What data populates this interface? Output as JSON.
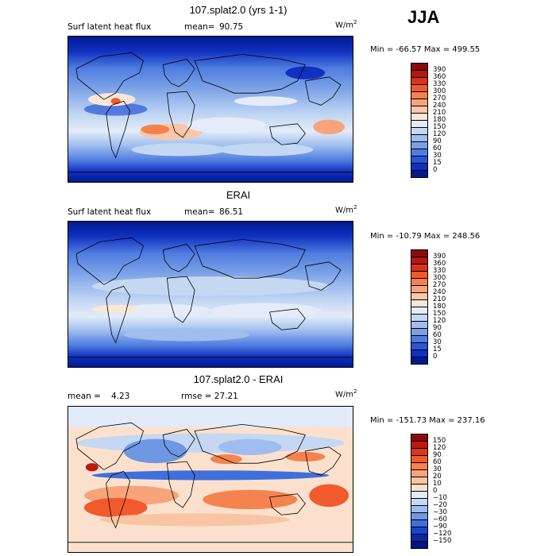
{
  "season": "JJA",
  "panels": [
    {
      "title": "107.splat2.0 (yrs 1-1)",
      "field_label": "Surf latent heat flux",
      "stat_label": "mean=",
      "stat_value": "90.75",
      "units": "W/m",
      "units_exp": "2",
      "minmax": "Min = -66.57 Max = 499.55",
      "colorbar": {
        "labels": [
          "390",
          "360",
          "330",
          "300",
          "270",
          "240",
          "210",
          "180",
          "150",
          "120",
          "90",
          "60",
          "30",
          "15",
          "0"
        ],
        "colors": [
          "#8b0a0a",
          "#b5170f",
          "#d8331b",
          "#ef5a2c",
          "#f4824f",
          "#f7a47a",
          "#f9c7a8",
          "#fbe6d5",
          "#e3ecf8",
          "#c4d8f3",
          "#9fbdee",
          "#7aa0e6",
          "#4f7de0",
          "#2a55d6",
          "#1030c0",
          "#001a90"
        ],
        "vmin": 0,
        "vmax": 390
      }
    },
    {
      "title": "ERAI",
      "field_label": "Surf latent heat flux",
      "stat_label": "mean=",
      "stat_value": "86.51",
      "units": "W/m",
      "units_exp": "2",
      "minmax": "Min = -10.79 Max = 248.56",
      "colorbar": {
        "labels": [
          "390",
          "360",
          "330",
          "300",
          "270",
          "240",
          "210",
          "180",
          "150",
          "120",
          "90",
          "60",
          "30",
          "15",
          "0"
        ],
        "colors": [
          "#8b0a0a",
          "#b5170f",
          "#d8331b",
          "#ef5a2c",
          "#f4824f",
          "#f7a47a",
          "#f9c7a8",
          "#fbe6d5",
          "#e3ecf8",
          "#c4d8f3",
          "#9fbdee",
          "#7aa0e6",
          "#4f7de0",
          "#2a55d6",
          "#1030c0",
          "#001a90"
        ],
        "vmin": 0,
        "vmax": 390
      }
    },
    {
      "title": "107.splat2.0 - ERAI",
      "field_label": "mean =",
      "stat_label": "4.23",
      "stat_value": "rmse =   27.21",
      "units": "W/m",
      "units_exp": "2",
      "minmax": "Min = -151.73 Max = 237.16",
      "colorbar": {
        "labels": [
          "150",
          "120",
          "90",
          "60",
          "30",
          "20",
          "10",
          "0",
          "−10",
          "−20",
          "−30",
          "−60",
          "−90",
          "−120",
          "−150"
        ],
        "colors": [
          "#8b0a0a",
          "#c0180f",
          "#e0341b",
          "#f05a2d",
          "#f4834f",
          "#f7a47a",
          "#f9c4a3",
          "#fbe1cd",
          "#e2ebf8",
          "#c4d8f3",
          "#9fbdee",
          "#6f98e4",
          "#3f6fdb",
          "#1a44cc",
          "#0a28a8",
          "#001580"
        ],
        "vmin": -150,
        "vmax": 150
      }
    }
  ]
}
